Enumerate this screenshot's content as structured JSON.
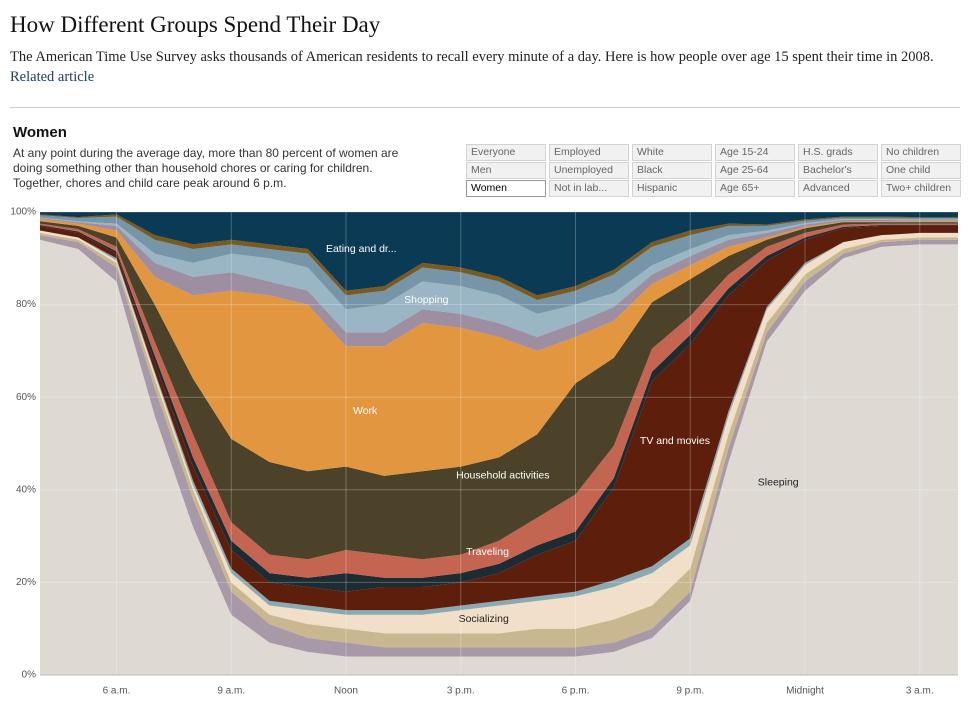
{
  "header": {
    "title": "How Different Groups Spend Their Day",
    "intro": "The American Time Use Survey asks thousands of American residents to recall every minute of a day. Here is how people over age 15 spent their time in 2008.",
    "link": "Related article"
  },
  "panel": {
    "heading": "Women",
    "text": "At any point during the average day, more than 80 percent of women are doing something other than household chores or caring for children. Together, chores and child care peak around 6 p.m."
  },
  "filters": [
    [
      "Everyone",
      "Men",
      "Women"
    ],
    [
      "Employed",
      "Unemployed",
      "Not in lab..."
    ],
    [
      "White",
      "Black",
      "Hispanic"
    ],
    [
      "Age 15-24",
      "Age 25-64",
      "Age 65+"
    ],
    [
      "H.S. grads",
      "Bachelor's",
      "Advanced"
    ],
    [
      "No children",
      "One child",
      "Two+ children"
    ]
  ],
  "chart_data": {
    "type": "stacked_area",
    "x": [
      4,
      5,
      6,
      7,
      8,
      9,
      10,
      11,
      12,
      13,
      14,
      15,
      16,
      17,
      18,
      19,
      20,
      21,
      22,
      23,
      24,
      25,
      26,
      27,
      28
    ],
    "xlim": [
      4,
      28
    ],
    "xticks": [
      {
        "value": 6,
        "label": "6 a.m."
      },
      {
        "value": 9,
        "label": "9 a.m."
      },
      {
        "value": 12,
        "label": "Noon"
      },
      {
        "value": 15,
        "label": "3 p.m."
      },
      {
        "value": 18,
        "label": "6 p.m."
      },
      {
        "value": 21,
        "label": "9 p.m."
      },
      {
        "value": 24,
        "label": "Midnight"
      },
      {
        "value": 27,
        "label": "3 a.m."
      }
    ],
    "ylim": [
      0,
      100
    ],
    "yticks": [
      {
        "value": 0,
        "label": "0%"
      },
      {
        "value": 20,
        "label": "20%"
      },
      {
        "value": 40,
        "label": "40%"
      },
      {
        "value": 60,
        "label": "60%"
      },
      {
        "value": 80,
        "label": "80%"
      },
      {
        "value": 100,
        "label": "100%"
      }
    ],
    "grid": true,
    "series": [
      {
        "name": "Sleeping",
        "color": "#dedad3",
        "values": [
          94,
          92,
          85,
          56,
          32,
          13,
          7,
          5,
          4,
          4,
          4,
          4,
          4,
          4,
          4,
          5,
          8,
          16,
          46,
          72,
          83,
          90,
          92.5,
          93,
          93
        ]
      },
      {
        "color": "#a899a9",
        "values": [
          1,
          1.5,
          3,
          6,
          6,
          5,
          4,
          3,
          3,
          2,
          2,
          2,
          2,
          2,
          2,
          2,
          2,
          2,
          3,
          2,
          2,
          1,
          1,
          1,
          1
        ]
      },
      {
        "color": "#c9b88f",
        "values": [
          0.5,
          0.5,
          1,
          2,
          2,
          2,
          2,
          3,
          3,
          3,
          3,
          3,
          3,
          4,
          4,
          5,
          5,
          5,
          3,
          2,
          1.5,
          1,
          0.5,
          0.5,
          0.5
        ]
      },
      {
        "name": "Socializing",
        "color": "#f1dfc9",
        "values": [
          0.5,
          0.5,
          0.5,
          1,
          1,
          2,
          2,
          3,
          3,
          4,
          4,
          5,
          6,
          6,
          7,
          7,
          7,
          5,
          4,
          3,
          2,
          1.5,
          1,
          1,
          1
        ]
      },
      {
        "color": "#8aaab3",
        "values": [
          0,
          0,
          0.5,
          0.5,
          1,
          1,
          1,
          1,
          1,
          1,
          1,
          1,
          1,
          1,
          1,
          1.5,
          1.5,
          1.5,
          1,
          0.5,
          0.5,
          0,
          0,
          0,
          0
        ]
      },
      {
        "name": "TV and movies",
        "color": "#5e1e0c",
        "values": [
          1,
          1,
          1,
          2,
          3,
          4,
          4,
          4,
          4,
          5,
          5,
          5,
          6,
          9,
          11,
          20,
          40,
          42,
          25,
          10,
          5,
          3,
          2,
          1.5,
          1.5
        ]
      },
      {
        "color": "#1d2b33",
        "values": [
          0.2,
          0.3,
          0.5,
          1.5,
          2,
          2,
          2,
          2,
          4,
          2,
          2,
          2,
          2,
          2,
          2,
          2,
          2,
          2,
          1.5,
          1,
          0.5,
          0.3,
          0.2,
          0.2,
          0.2
        ]
      },
      {
        "name": "Traveling",
        "color": "#c46552",
        "values": [
          0.3,
          0.5,
          1,
          3,
          5,
          4,
          4,
          4,
          5,
          5,
          4,
          4,
          5,
          6,
          8,
          7,
          5,
          4,
          3,
          2,
          1,
          0.5,
          0.3,
          0.3,
          0.3
        ]
      },
      {
        "name": "Household activities",
        "color": "#4b4229",
        "values": [
          0.5,
          0.7,
          2,
          8,
          12,
          18,
          20,
          19,
          18,
          17,
          19,
          19,
          18,
          18,
          24,
          19,
          10,
          8,
          4,
          1.5,
          1,
          0.5,
          0.3,
          0.3,
          0.3
        ]
      },
      {
        "name": "Work",
        "color": "#e39640",
        "values": [
          0.5,
          0.5,
          1.5,
          6,
          18,
          32,
          36,
          36,
          26,
          28,
          32,
          30,
          26,
          18,
          10,
          8,
          4,
          3,
          2,
          0.5,
          0.3,
          0.2,
          0.2,
          0.2,
          0.2
        ]
      },
      {
        "color": "#9e8ea2",
        "values": [
          0.2,
          0.3,
          1,
          3,
          4,
          4,
          3,
          3,
          3,
          3,
          3,
          3,
          3,
          3,
          3,
          3,
          2,
          2,
          1.5,
          1,
          0.5,
          0.3,
          0.3,
          0.2,
          0.2
        ]
      },
      {
        "name": "Shopping",
        "color": "#9ab5c4",
        "values": [
          0.1,
          0.2,
          0.5,
          2,
          3,
          4,
          5,
          5,
          5,
          6,
          6,
          6,
          6,
          5,
          4,
          3,
          2,
          1.5,
          1,
          0.5,
          0.3,
          0.2,
          0.2,
          0.2,
          0.2
        ]
      },
      {
        "color": "#7795a8",
        "values": [
          0.5,
          0.7,
          1.5,
          3,
          3,
          2,
          2,
          3,
          3,
          3,
          3,
          3,
          3,
          3,
          3,
          4,
          4,
          3,
          2,
          1,
          0.5,
          0.3,
          0.3,
          0.3,
          0.3
        ]
      },
      {
        "color": "#7a5a1e",
        "values": [
          0.2,
          0.2,
          0.5,
          1,
          1,
          1,
          1,
          1,
          1,
          1,
          1,
          1,
          1,
          1,
          1,
          1,
          1,
          1,
          0.5,
          0.3,
          0.3,
          0.2,
          0.2,
          0.2,
          0.2
        ]
      },
      {
        "name": "Eating and dr...",
        "color": "#0b3a55",
        "values": [
          0.5,
          1.1,
          0.5,
          5,
          7,
          6,
          7,
          8,
          17,
          16,
          11,
          12,
          14,
          18,
          16,
          12.5,
          6.5,
          4,
          2.5,
          2.7,
          1.6,
          1,
          1,
          1.1,
          1.1
        ]
      }
    ]
  }
}
